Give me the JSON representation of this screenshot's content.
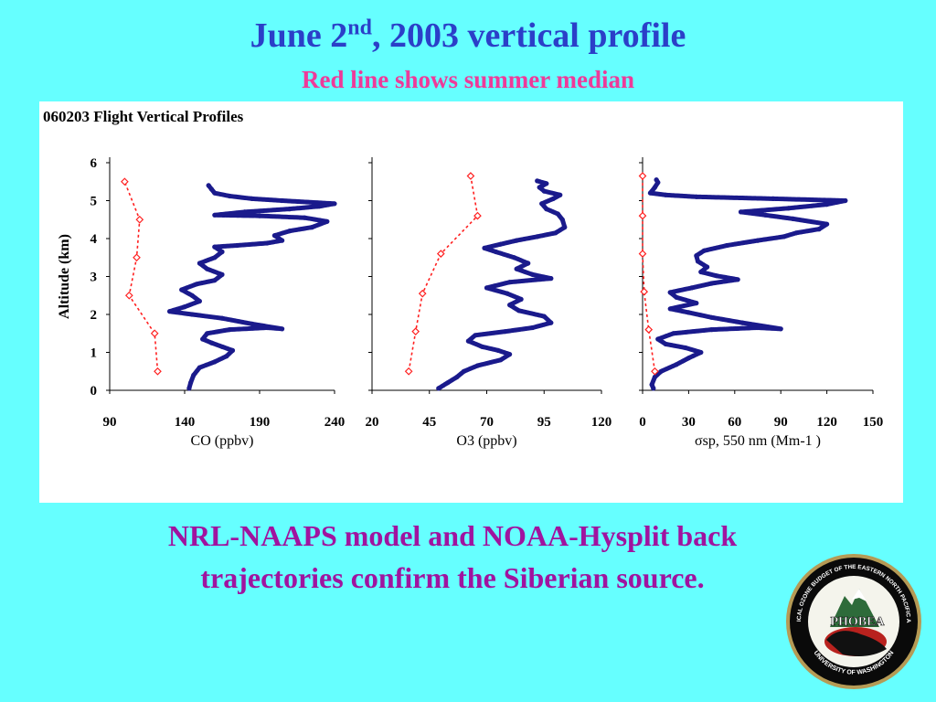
{
  "slide": {
    "title_main": "June 2",
    "title_sup": "nd",
    "title_rest": ", 2003 vertical profile",
    "subtitle": "Red line shows summer median",
    "caption_line1": "NRL-NAAPS model and NOAA-Hysplit back",
    "caption_line2": "trajectories confirm the Siberian source."
  },
  "colors": {
    "background": "#66FFFF",
    "title": "#2B3FC8",
    "subtitle": "#EE3A99",
    "caption": "#A0139F",
    "flight_series": "#1A1A8C",
    "median_series": "#FF2020"
  },
  "logo": {
    "name": "PHOBEA",
    "ring_text": "PHOTOCHEMICAL OZONE BUDGET OF THE EASTERN NORTH PACIFIC ATMOSPHERE",
    "bottom_text": "UNIVERSITY OF WASHINGTON"
  },
  "chart_data": {
    "figure_title": "060203 Flight Vertical Profiles",
    "ylabel": "Altitude (km)",
    "ylim": [
      0,
      6
    ],
    "yticks": [
      0,
      1,
      2,
      3,
      4,
      5,
      6
    ],
    "panels": [
      {
        "type": "scatter",
        "xlabel": "CO (ppbv)",
        "xlim": [
          90,
          240
        ],
        "xticks": [
          90,
          140,
          190,
          240
        ],
        "series": [
          {
            "kind": "flight",
            "points": [
              [
                143,
                0.05
              ],
              [
                144,
                0.2
              ],
              [
                146,
                0.4
              ],
              [
                150,
                0.6
              ],
              [
                160,
                0.75
              ],
              [
                168,
                0.9
              ],
              [
                172,
                1.05
              ],
              [
                165,
                1.15
              ],
              [
                158,
                1.25
              ],
              [
                152,
                1.35
              ],
              [
                155,
                1.5
              ],
              [
                170,
                1.6
              ],
              [
                195,
                1.65
              ],
              [
                205,
                1.62
              ],
              [
                185,
                1.75
              ],
              [
                165,
                1.9
              ],
              [
                145,
                2.0
              ],
              [
                130,
                2.08
              ],
              [
                140,
                2.2
              ],
              [
                150,
                2.35
              ],
              [
                145,
                2.5
              ],
              [
                138,
                2.65
              ],
              [
                148,
                2.8
              ],
              [
                160,
                2.9
              ],
              [
                165,
                3.05
              ],
              [
                155,
                3.2
              ],
              [
                150,
                3.35
              ],
              [
                160,
                3.5
              ],
              [
                165,
                3.65
              ],
              [
                160,
                3.78
              ],
              [
                175,
                3.82
              ],
              [
                195,
                3.88
              ],
              [
                205,
                3.95
              ],
              [
                200,
                4.08
              ],
              [
                210,
                4.2
              ],
              [
                225,
                4.3
              ],
              [
                235,
                4.45
              ],
              [
                220,
                4.55
              ],
              [
                190,
                4.6
              ],
              [
                160,
                4.62
              ],
              [
                180,
                4.7
              ],
              [
                210,
                4.78
              ],
              [
                230,
                4.85
              ],
              [
                240,
                4.92
              ],
              [
                205,
                5.0
              ],
              [
                185,
                5.05
              ],
              [
                170,
                5.12
              ],
              [
                160,
                5.2
              ],
              [
                158,
                5.3
              ],
              [
                156,
                5.4
              ]
            ]
          },
          {
            "kind": "summer_median",
            "points": [
              [
                122,
                0.5
              ],
              [
                120,
                1.5
              ],
              [
                103,
                2.5
              ],
              [
                108,
                3.5
              ],
              [
                110,
                4.5
              ],
              [
                100,
                5.5
              ]
            ]
          }
        ]
      },
      {
        "type": "scatter",
        "xlabel": "O3 (ppbv)",
        "xlim": [
          20,
          120
        ],
        "xticks": [
          20,
          45,
          70,
          95,
          120
        ],
        "series": [
          {
            "kind": "flight",
            "points": [
              [
                49,
                0.05
              ],
              [
                53,
                0.2
              ],
              [
                57,
                0.35
              ],
              [
                60,
                0.5
              ],
              [
                66,
                0.65
              ],
              [
                76,
                0.8
              ],
              [
                80,
                0.95
              ],
              [
                75,
                1.05
              ],
              [
                68,
                1.15
              ],
              [
                62,
                1.3
              ],
              [
                65,
                1.45
              ],
              [
                78,
                1.55
              ],
              [
                90,
                1.65
              ],
              [
                98,
                1.78
              ],
              [
                95,
                1.95
              ],
              [
                84,
                2.1
              ],
              [
                80,
                2.25
              ],
              [
                85,
                2.4
              ],
              [
                79,
                2.55
              ],
              [
                70,
                2.7
              ],
              [
                80,
                2.85
              ],
              [
                98,
                2.95
              ],
              [
                90,
                3.05
              ],
              [
                83,
                3.2
              ],
              [
                88,
                3.35
              ],
              [
                82,
                3.5
              ],
              [
                74,
                3.65
              ],
              [
                69,
                3.75
              ],
              [
                76,
                3.85
              ],
              [
                83,
                3.95
              ],
              [
                92,
                4.05
              ],
              [
                100,
                4.15
              ],
              [
                104,
                4.3
              ],
              [
                103,
                4.5
              ],
              [
                101,
                4.65
              ],
              [
                96,
                4.78
              ],
              [
                94,
                4.92
              ],
              [
                99,
                5.05
              ],
              [
                102,
                5.15
              ],
              [
                95,
                5.25
              ],
              [
                93,
                5.35
              ],
              [
                96,
                5.45
              ],
              [
                92,
                5.52
              ]
            ]
          },
          {
            "kind": "summer_median",
            "points": [
              [
                36,
                0.5
              ],
              [
                39,
                1.55
              ],
              [
                42,
                2.55
              ],
              [
                50,
                3.6
              ],
              [
                66,
                4.6
              ],
              [
                63,
                5.65
              ]
            ]
          }
        ]
      },
      {
        "type": "scatter",
        "xlabel": "σsp, 550 nm (Mm-1 )",
        "xlim": [
          0,
          150
        ],
        "xticks": [
          0,
          30,
          60,
          90,
          120,
          150
        ],
        "series": [
          {
            "kind": "flight",
            "points": [
              [
                7,
                0.05
              ],
              [
                6,
                0.15
              ],
              [
                8,
                0.35
              ],
              [
                12,
                0.5
              ],
              [
                22,
                0.68
              ],
              [
                30,
                0.85
              ],
              [
                38,
                1.0
              ],
              [
                28,
                1.12
              ],
              [
                15,
                1.22
              ],
              [
                10,
                1.35
              ],
              [
                20,
                1.5
              ],
              [
                45,
                1.6
              ],
              [
                75,
                1.65
              ],
              [
                90,
                1.62
              ],
              [
                65,
                1.78
              ],
              [
                45,
                1.92
              ],
              [
                30,
                2.05
              ],
              [
                18,
                2.15
              ],
              [
                35,
                2.3
              ],
              [
                22,
                2.45
              ],
              [
                18,
                2.58
              ],
              [
                32,
                2.7
              ],
              [
                45,
                2.82
              ],
              [
                62,
                2.92
              ],
              [
                48,
                3.02
              ],
              [
                38,
                3.12
              ],
              [
                42,
                3.25
              ],
              [
                36,
                3.4
              ],
              [
                35,
                3.55
              ],
              [
                40,
                3.68
              ],
              [
                55,
                3.82
              ],
              [
                75,
                3.95
              ],
              [
                92,
                4.05
              ],
              [
                100,
                4.15
              ],
              [
                115,
                4.25
              ],
              [
                120,
                4.38
              ],
              [
                98,
                4.52
              ],
              [
                80,
                4.62
              ],
              [
                64,
                4.7
              ],
              [
                95,
                4.8
              ],
              [
                120,
                4.9
              ],
              [
                132,
                5.0
              ],
              [
                85,
                5.05
              ],
              [
                35,
                5.1
              ],
              [
                15,
                5.15
              ],
              [
                5,
                5.2
              ],
              [
                8,
                5.35
              ],
              [
                10,
                5.48
              ],
              [
                9,
                5.55
              ]
            ]
          },
          {
            "kind": "summer_median",
            "points": [
              [
                8,
                0.5
              ],
              [
                4,
                1.6
              ],
              [
                1,
                2.6
              ],
              [
                0,
                3.6
              ],
              [
                0,
                4.6
              ],
              [
                0,
                5.65
              ]
            ]
          }
        ]
      }
    ]
  }
}
